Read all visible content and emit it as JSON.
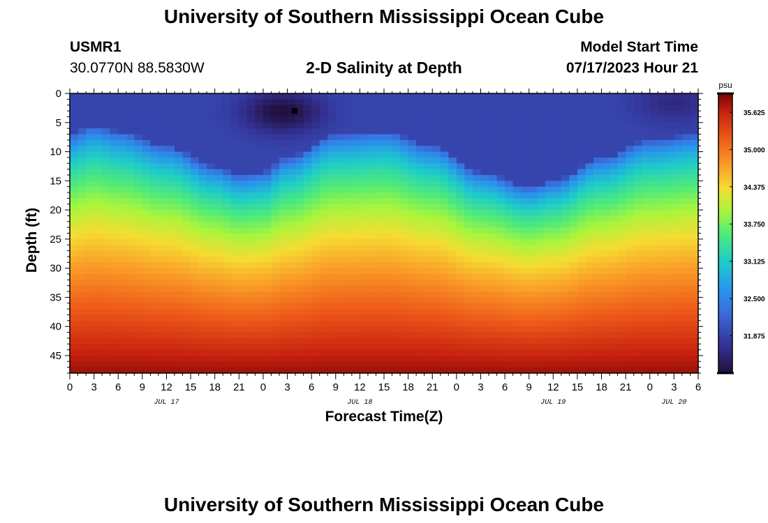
{
  "header": {
    "title": "University of Southern Mississippi Ocean Cube",
    "station_id": "USMR1",
    "station_coords": "30.0770N  88.5830W",
    "plot_title": "2-D Salinity at Depth",
    "model_start_label": "Model Start Time",
    "model_start_value": "07/17/2023 Hour 21"
  },
  "footer": {
    "title": "University of Southern Mississippi Ocean Cube"
  },
  "chart_data": {
    "type": "heatmap",
    "title": "2-D Salinity at Depth",
    "xlabel": "Forecast Time(Z)",
    "ylabel": "Depth (ft)",
    "y_ticks": [
      0,
      5,
      10,
      15,
      20,
      25,
      30,
      35,
      40,
      45
    ],
    "y_range": [
      0,
      48
    ],
    "y_inverted": true,
    "x_tick_labels": [
      "0",
      "3",
      "6",
      "9",
      "12",
      "15",
      "18",
      "21",
      "0",
      "3",
      "6",
      "9",
      "12",
      "15",
      "18",
      "21",
      "0",
      "3",
      "6",
      "9",
      "12",
      "15",
      "18",
      "21",
      "0",
      "3",
      "6"
    ],
    "date_labels": [
      {
        "text": "JUL 17",
        "tick_index": 4
      },
      {
        "text": "JUL 18",
        "tick_index": 12
      },
      {
        "text": "JUL 19",
        "tick_index": 20
      },
      {
        "text": "JUL 20",
        "tick_index": 25
      }
    ],
    "colorbar": {
      "unit": "psu",
      "ticks": [
        "35.625",
        "35.000",
        "34.375",
        "33.750",
        "33.125",
        "32.500",
        "31.875"
      ],
      "range": [
        31.25,
        35.94
      ]
    },
    "halocline_depth_by_tick": [
      {
        "tick_index": 0,
        "depth_ft": 10
      },
      {
        "tick_index": 1,
        "depth_ft": 8.5
      },
      {
        "tick_index": 2,
        "depth_ft": 9.5
      },
      {
        "tick_index": 4,
        "depth_ft": 12
      },
      {
        "tick_index": 6,
        "depth_ft": 15.5
      },
      {
        "tick_index": 7,
        "depth_ft": 17
      },
      {
        "tick_index": 8,
        "depth_ft": 16.5
      },
      {
        "tick_index": 9,
        "depth_ft": 14
      },
      {
        "tick_index": 11,
        "depth_ft": 10
      },
      {
        "tick_index": 13,
        "depth_ft": 9.5
      },
      {
        "tick_index": 15,
        "depth_ft": 12
      },
      {
        "tick_index": 17,
        "depth_ft": 16.5
      },
      {
        "tick_index": 19,
        "depth_ft": 19
      },
      {
        "tick_index": 20,
        "depth_ft": 18
      },
      {
        "tick_index": 22,
        "depth_ft": 14
      },
      {
        "tick_index": 24,
        "depth_ft": 11
      },
      {
        "tick_index": 26,
        "depth_ft": 10
      }
    ],
    "surface_salinity": 31.9,
    "bottom_salinity": 35.8,
    "fresh_lens": [
      {
        "tick_index": 8.8,
        "depth_ft": 3.2,
        "salinity": 31.25
      },
      {
        "tick_index": 25,
        "depth_ft": 1.5,
        "salinity": 31.6
      }
    ],
    "marker": {
      "tick_index": 9.3,
      "depth_ft": 3
    }
  },
  "colors": {
    "background": "#ffffff",
    "text": "#000000"
  }
}
